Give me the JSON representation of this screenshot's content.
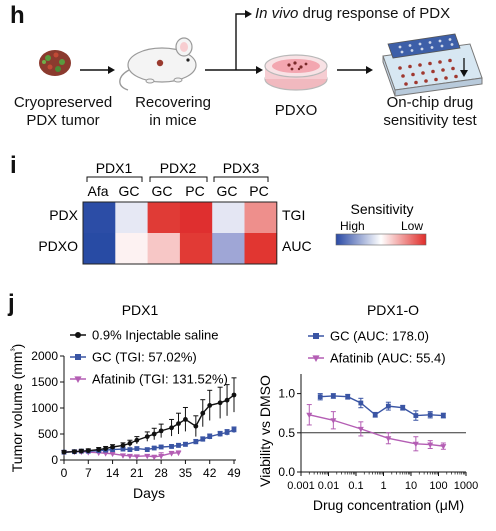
{
  "panel_h": {
    "letter": "h",
    "invivo_italic": "In vivo",
    "invivo_rest": " drug response of PDX",
    "steps": [
      {
        "line1": "Cryopreserved",
        "line2": "PDX tumor"
      },
      {
        "line1": "Recovering",
        "line2": "in mice"
      },
      {
        "line1": "PDXO",
        "line2": ""
      },
      {
        "line1": "On-chip drug",
        "line2": "sensitivity test"
      }
    ]
  },
  "panel_i": {
    "letter": "i",
    "groups": [
      "PDX1",
      "PDX2",
      "PDX3"
    ],
    "columns": [
      "Afa",
      "GC",
      "GC",
      "PC",
      "GC",
      "PC"
    ],
    "rows_left": [
      "PDX",
      "PDXO"
    ],
    "rows_right": [
      "TGI",
      "AUC"
    ],
    "legend_title": "Sensitivity",
    "legend_high": "High",
    "legend_low": "Low",
    "cell_colors": [
      [
        "#2c4da6",
        "#e6e8f4",
        "#e03b36",
        "#df2f2f",
        "#e4e6f3",
        "#ee8f8c"
      ],
      [
        "#284ba4",
        "#fdf2f2",
        "#f7c7c6",
        "#e13a35",
        "#9fa6d6",
        "#e13631"
      ]
    ],
    "colors": {
      "high": "#2a4aa5",
      "mid": "#ffffff",
      "low": "#e02d2a"
    }
  },
  "panel_j": {
    "letter": "j",
    "chart_data": [
      {
        "type": "line",
        "title": "PDX1",
        "xlabel": "Days",
        "ylabel": "Tumor volume (mm³)",
        "xlim": [
          0,
          49
        ],
        "ylim": [
          0,
          2000
        ],
        "xticks": [
          0,
          7,
          14,
          21,
          28,
          35,
          42,
          49
        ],
        "yticks": [
          0,
          500,
          1000,
          1500,
          2000
        ],
        "series": [
          {
            "name": "0.9% Injectable saline",
            "color": "#111111",
            "marker": "circle",
            "x": [
              0,
              3,
              5,
              7,
              10,
              12,
              14,
              17,
              19,
              21,
              24,
              26,
              28,
              31,
              33,
              35,
              38,
              40,
              42,
              45,
              47,
              49
            ],
            "values": [
              150,
              160,
              170,
              180,
              200,
              220,
              250,
              280,
              320,
              380,
              450,
              500,
              560,
              620,
              700,
              780,
              650,
              900,
              1050,
              1100,
              1150,
              1250
            ],
            "errors": [
              30,
              30,
              35,
              35,
              40,
              40,
              45,
              50,
              60,
              70,
              90,
              110,
              130,
              160,
              200,
              230,
              200,
              260,
              290,
              300,
              300,
              330
            ]
          },
          {
            "name": "GC (TGI: 57.02%)",
            "color": "#3a55a4",
            "marker": "square",
            "x": [
              0,
              3,
              5,
              7,
              10,
              12,
              14,
              17,
              19,
              21,
              24,
              26,
              28,
              31,
              33,
              35,
              38,
              40,
              42,
              45,
              47,
              49
            ],
            "values": [
              150,
              160,
              170,
              170,
              180,
              190,
              200,
              210,
              200,
              220,
              200,
              230,
              250,
              260,
              280,
              300,
              350,
              400,
              450,
              500,
              530,
              580
            ],
            "errors": [
              20,
              20,
              20,
              20,
              25,
              25,
              25,
              30,
              30,
              30,
              30,
              30,
              35,
              35,
              40,
              40,
              45,
              45,
              50,
              50,
              55,
              55
            ]
          },
          {
            "name": "Afatinib (TGI: 131.52%)",
            "color": "#b45eb4",
            "marker": "triangle-down",
            "x": [
              0,
              3,
              5,
              7,
              10,
              12,
              14,
              17,
              19,
              21,
              24,
              26,
              28,
              31,
              33
            ],
            "values": [
              150,
              160,
              160,
              150,
              140,
              130,
              120,
              90,
              80,
              70,
              80,
              60,
              80,
              130,
              140
            ],
            "errors": [
              20,
              20,
              20,
              20,
              20,
              20,
              20,
              25,
              25,
              25,
              25,
              30,
              60,
              35,
              35
            ]
          }
        ]
      },
      {
        "type": "line",
        "title": "PDX1-O",
        "xlabel": "Drug concentration (μM)",
        "ylabel": "Viability vs DMSO",
        "xscale": "log",
        "xlim": [
          0.001,
          1000
        ],
        "ylim": [
          0,
          1.25
        ],
        "xticks": [
          "0.001",
          "0.01",
          "0.1",
          "1",
          "10",
          "100",
          "1000"
        ],
        "yticks": [
          "0.0",
          "0.5",
          "1.0"
        ],
        "reference_line": 0.5,
        "series": [
          {
            "name": "GC (AUC: 178.0)",
            "color": "#3a55a4",
            "marker": "square",
            "x": [
              0.005,
              0.015,
              0.05,
              0.15,
              0.5,
              1.5,
              5,
              15,
              50,
              150
            ],
            "values": [
              0.96,
              0.97,
              0.96,
              0.88,
              0.73,
              0.84,
              0.82,
              0.72,
              0.73,
              0.72
            ],
            "errors": [
              0.04,
              0.03,
              0.03,
              0.06,
              0.03,
              0.05,
              0.03,
              0.06,
              0.04,
              0.03
            ]
          },
          {
            "name": "Afatinib (AUC: 55.4)",
            "color": "#b45eb4",
            "marker": "triangle-down",
            "x": [
              0.002,
              0.015,
              0.15,
              1.5,
              15,
              50,
              150
            ],
            "values": [
              0.73,
              0.66,
              0.55,
              0.43,
              0.36,
              0.35,
              0.33
            ],
            "errors": [
              0.13,
              0.11,
              0.09,
              0.07,
              0.09,
              0.05,
              0.04
            ]
          }
        ]
      }
    ]
  }
}
